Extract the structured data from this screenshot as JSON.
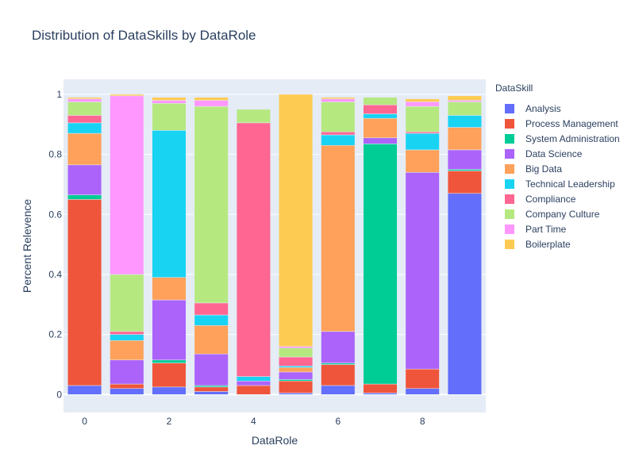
{
  "chart_data": {
    "type": "bar",
    "stacked": true,
    "title": "Distribution of DataSkills by DataRole",
    "xlabel": "DataRole",
    "ylabel": "Percent Relevence",
    "legend_title": "DataSkill",
    "legend_position": "right",
    "grid": true,
    "x": [
      0,
      1,
      2,
      3,
      4,
      5,
      6,
      7,
      8,
      9
    ],
    "x_ticks": [
      "0",
      "2",
      "4",
      "6",
      "8"
    ],
    "x_tick_values": [
      0,
      2,
      4,
      6,
      8
    ],
    "y_ticks": [
      "0",
      "0.2",
      "0.4",
      "0.6",
      "0.8",
      "1"
    ],
    "y_tick_values": [
      0,
      0.2,
      0.4,
      0.6,
      0.8,
      1.0
    ],
    "ylim": [
      -0.06,
      1.05
    ],
    "xlim": [
      -0.5,
      9.5
    ],
    "series": [
      {
        "name": "Analysis",
        "color": "#636efa",
        "values": [
          0.03,
          0.02,
          0.025,
          0.01,
          0.0,
          0.005,
          0.03,
          0.005,
          0.02,
          0.67
        ]
      },
      {
        "name": "Process Management",
        "color": "#EF553B",
        "values": [
          0.62,
          0.015,
          0.08,
          0.015,
          0.03,
          0.04,
          0.07,
          0.03,
          0.065,
          0.075
        ]
      },
      {
        "name": "System Administration",
        "color": "#00cc96",
        "values": [
          0.015,
          0.0,
          0.01,
          0.005,
          0.0,
          0.005,
          0.005,
          0.8,
          0.0,
          0.005
        ]
      },
      {
        "name": "Data Science",
        "color": "#ab63fa",
        "values": [
          0.1,
          0.08,
          0.2,
          0.105,
          0.015,
          0.025,
          0.105,
          0.02,
          0.655,
          0.065
        ]
      },
      {
        "name": "Big Data",
        "color": "#FFA15A",
        "values": [
          0.105,
          0.065,
          0.075,
          0.095,
          0.0,
          0.015,
          0.62,
          0.065,
          0.075,
          0.075
        ]
      },
      {
        "name": "Technical Leadership",
        "color": "#19d3f3",
        "values": [
          0.035,
          0.02,
          0.49,
          0.035,
          0.015,
          0.005,
          0.035,
          0.015,
          0.055,
          0.04
        ]
      },
      {
        "name": "Compliance",
        "color": "#FF6692",
        "values": [
          0.025,
          0.01,
          0.0,
          0.04,
          0.845,
          0.03,
          0.01,
          0.03,
          0.005,
          0.0
        ]
      },
      {
        "name": "Company Culture",
        "color": "#B6E880",
        "values": [
          0.045,
          0.19,
          0.09,
          0.655,
          0.045,
          0.03,
          0.1,
          0.025,
          0.085,
          0.045
        ]
      },
      {
        "name": "Part Time",
        "color": "#FF97FF",
        "values": [
          0.01,
          0.595,
          0.01,
          0.02,
          0.0,
          0.005,
          0.01,
          0.0,
          0.015,
          0.005
        ]
      },
      {
        "name": "Boilerplate",
        "color": "#FECB52",
        "values": [
          0.005,
          0.005,
          0.01,
          0.01,
          0.0,
          0.84,
          0.005,
          0.0,
          0.01,
          0.015
        ]
      }
    ]
  }
}
